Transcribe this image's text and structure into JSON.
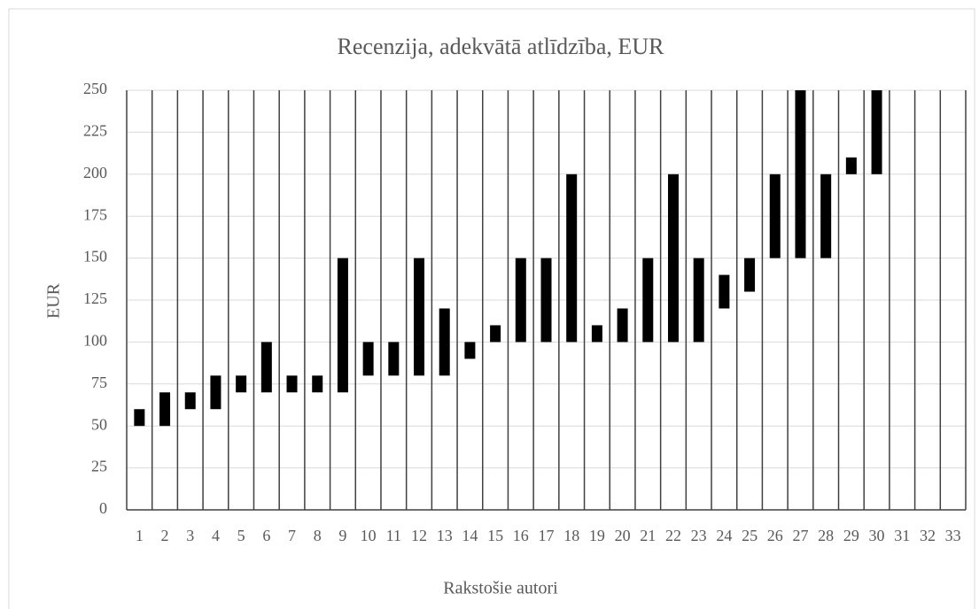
{
  "chart_data": {
    "type": "range-bar",
    "title": "Recenzija, adekvātā atlīdzība, EUR",
    "x_label": "Rakstošie autori",
    "y_label": "EUR",
    "categories": [
      "1",
      "2",
      "3",
      "4",
      "5",
      "6",
      "7",
      "8",
      "9",
      "10",
      "11",
      "12",
      "13",
      "14",
      "15",
      "16",
      "17",
      "18",
      "19",
      "20",
      "21",
      "22",
      "23",
      "24",
      "25",
      "26",
      "27",
      "28",
      "29",
      "30",
      "31",
      "32",
      "33"
    ],
    "low": [
      50,
      50,
      60,
      60,
      70,
      70,
      70,
      70,
      70,
      80,
      80,
      80,
      80,
      90,
      100,
      100,
      100,
      100,
      100,
      100,
      100,
      100,
      100,
      120,
      130,
      150,
      150,
      150,
      200,
      200,
      null,
      null,
      null
    ],
    "high": [
      60,
      70,
      70,
      80,
      80,
      100,
      80,
      80,
      150,
      100,
      100,
      150,
      120,
      100,
      110,
      150,
      150,
      200,
      110,
      120,
      150,
      200,
      150,
      140,
      150,
      200,
      250,
      200,
      210,
      250,
      null,
      null,
      null
    ],
    "color": "#000000",
    "ylim": [
      0,
      250
    ],
    "yticks": [
      0,
      25,
      50,
      75,
      100,
      125,
      150,
      175,
      200,
      225,
      250
    ],
    "grid": true
  }
}
